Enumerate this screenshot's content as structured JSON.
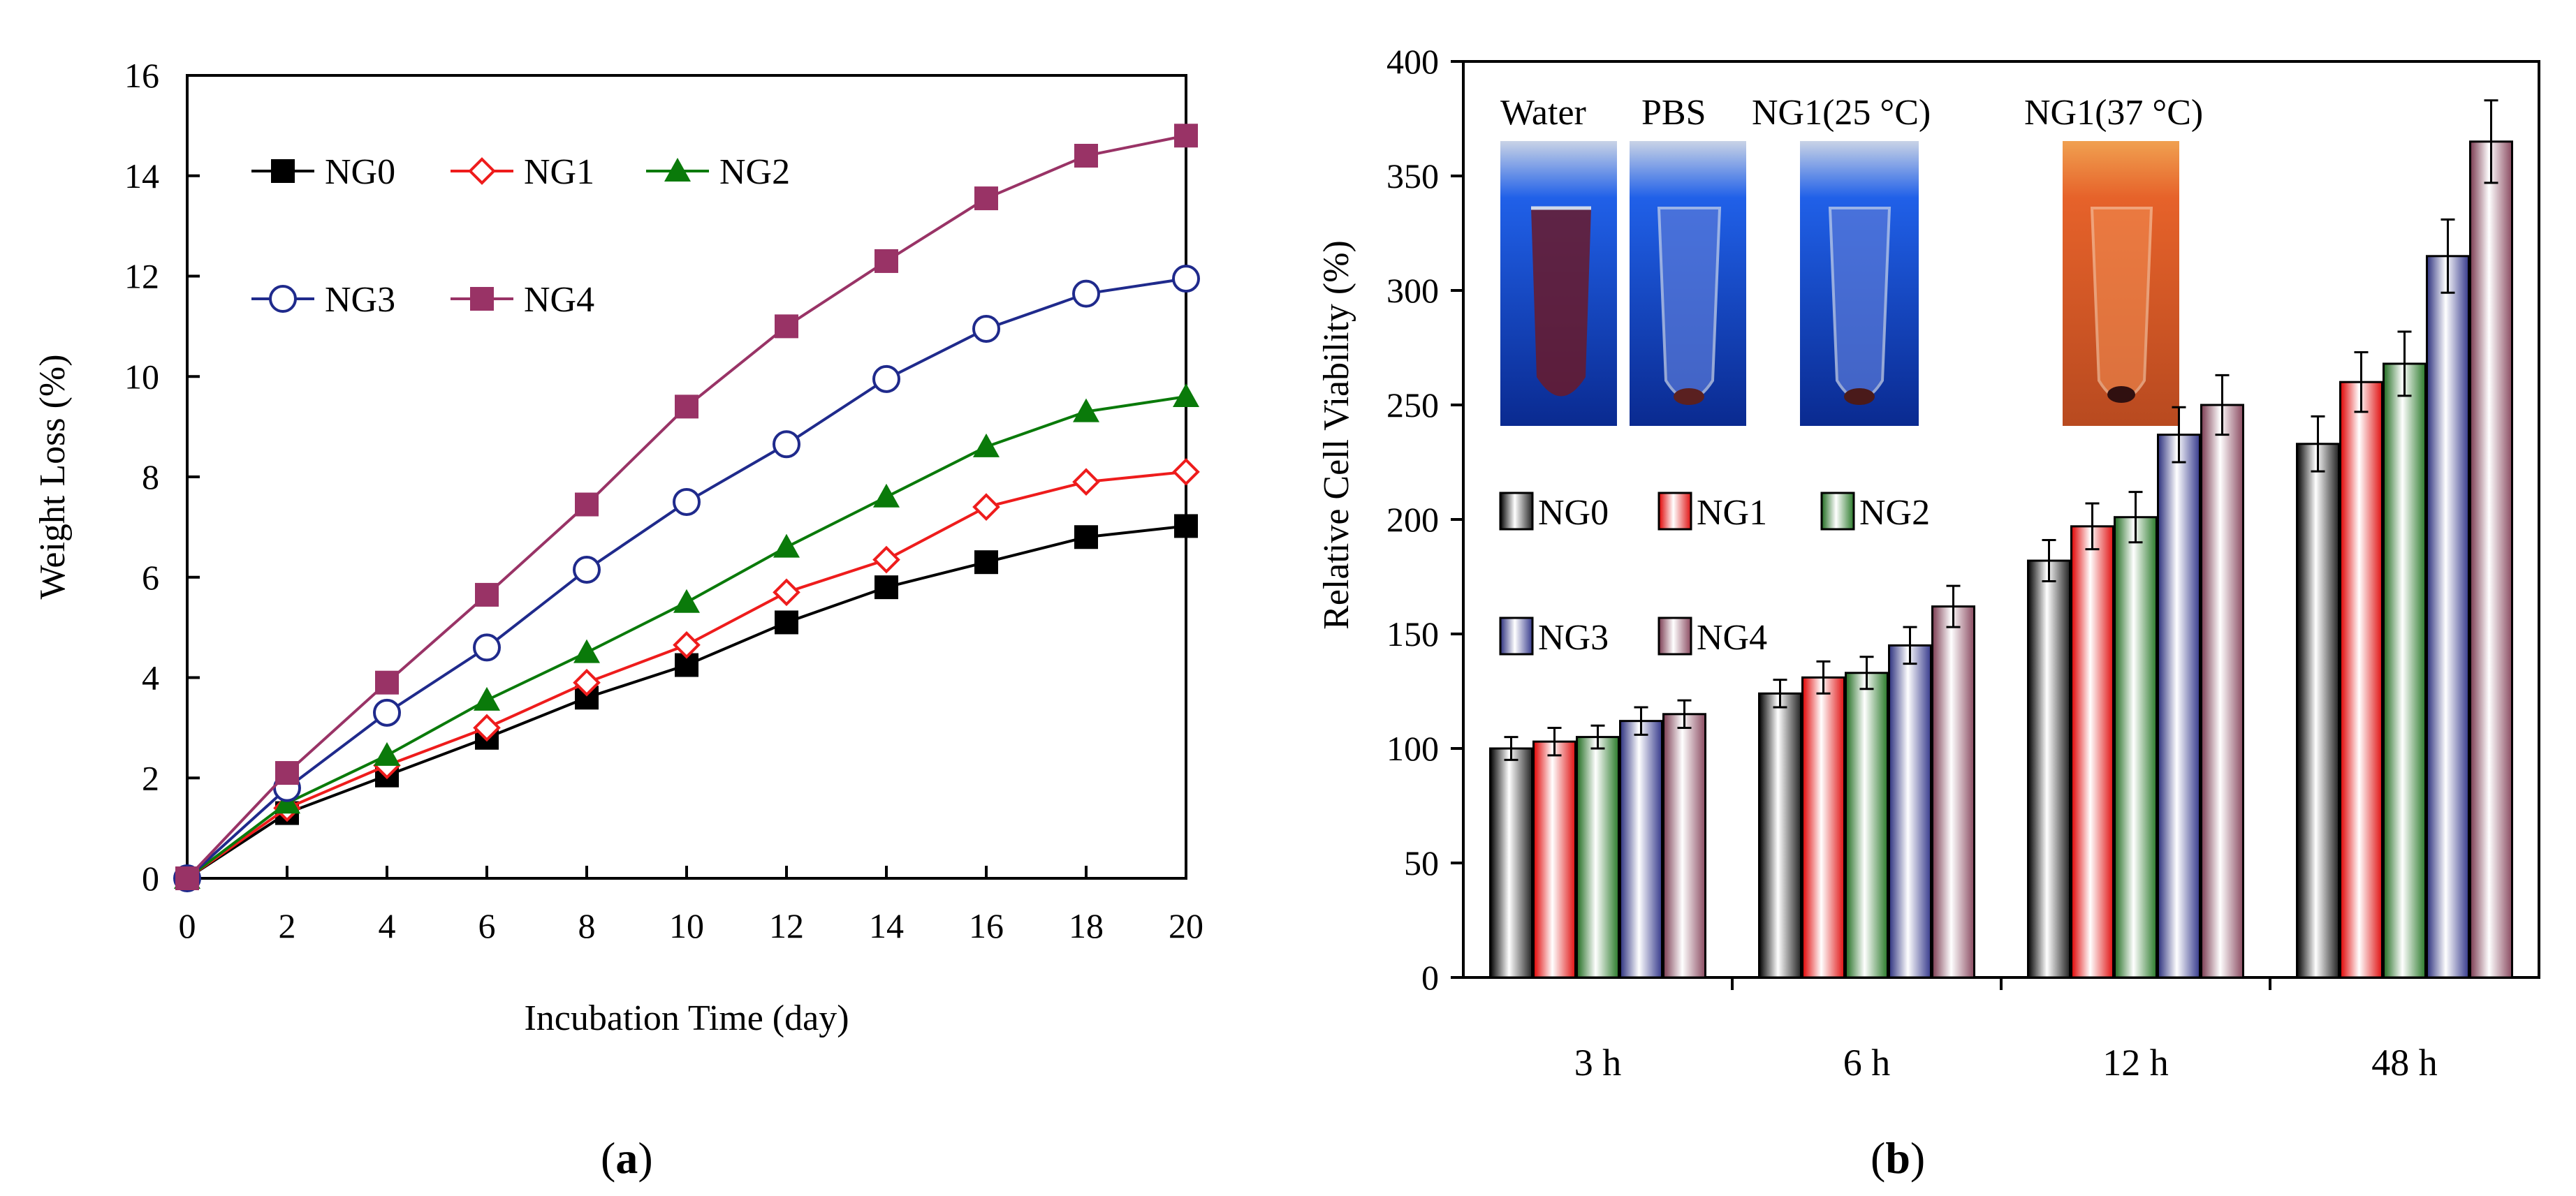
{
  "chart_data": [
    {
      "type": "line",
      "panel_label": "(a)",
      "panel_letter": "a",
      "xlabel": "Incubation Time (day)",
      "ylabel": "Weight  Loss (%)",
      "xlim": [
        0,
        20
      ],
      "ylim": [
        0,
        16
      ],
      "xticks": [
        0,
        2,
        4,
        6,
        8,
        10,
        12,
        14,
        16,
        18,
        20
      ],
      "yticks": [
        0,
        2,
        4,
        6,
        8,
        10,
        12,
        14,
        16
      ],
      "grid": false,
      "legend_position": "top-left",
      "x": [
        0,
        2,
        4,
        6,
        8,
        10,
        12,
        14,
        16,
        18,
        20
      ],
      "series": [
        {
          "name": "NG0",
          "marker": "filled-square",
          "color": "#000000",
          "values": [
            0,
            1.3,
            2.05,
            2.8,
            3.6,
            4.25,
            5.1,
            5.8,
            6.3,
            6.8,
            7.02
          ]
        },
        {
          "name": "NG1",
          "marker": "open-diamond",
          "color": "#ee1c1c",
          "values": [
            0,
            1.4,
            2.25,
            3.0,
            3.9,
            4.65,
            5.7,
            6.35,
            7.4,
            7.9,
            8.1
          ]
        },
        {
          "name": "NG2",
          "marker": "filled-triangle",
          "color": "#0a7a0a",
          "values": [
            0,
            1.5,
            2.45,
            3.55,
            4.5,
            5.5,
            6.6,
            7.6,
            8.6,
            9.3,
            9.6
          ]
        },
        {
          "name": "NG3",
          "marker": "open-circle",
          "color": "#1f2a8c",
          "values": [
            0,
            1.8,
            3.3,
            4.6,
            6.15,
            7.5,
            8.65,
            9.95,
            10.95,
            11.65,
            11.95
          ]
        },
        {
          "name": "NG4",
          "marker": "filled-square",
          "color": "#993366",
          "values": [
            0,
            2.1,
            3.9,
            5.65,
            7.45,
            9.4,
            11.0,
            12.3,
            13.55,
            14.4,
            14.8
          ]
        }
      ]
    },
    {
      "type": "bar",
      "panel_label": "(b)",
      "panel_letter": "b",
      "xlabel": "",
      "ylabel": "Relative Cell Viability (%)",
      "ylim": [
        0,
        400
      ],
      "yticks": [
        0,
        50,
        100,
        150,
        200,
        250,
        300,
        350,
        400
      ],
      "grid": false,
      "legend_position": "middle-left",
      "categories": [
        "3 h",
        "6 h",
        "12 h",
        "48 h"
      ],
      "series": [
        {
          "name": "NG0",
          "color": "#b8b8b8",
          "values": [
            100,
            124,
            182,
            233
          ],
          "errors": [
            5,
            6,
            9,
            12
          ]
        },
        {
          "name": "NG1",
          "color": "#f4a8a8",
          "values": [
            103,
            131,
            197,
            260
          ],
          "errors": [
            6,
            7,
            10,
            13
          ]
        },
        {
          "name": "NG2",
          "color": "#a9cfa9",
          "values": [
            105,
            133,
            201,
            268
          ],
          "errors": [
            5,
            7,
            11,
            14
          ]
        },
        {
          "name": "NG3",
          "color": "#b3b6da",
          "values": [
            112,
            145,
            237,
            315
          ],
          "errors": [
            6,
            8,
            12,
            16
          ]
        },
        {
          "name": "NG4",
          "color": "#e3c3cd",
          "values": [
            115,
            162,
            250,
            365
          ],
          "errors": [
            6,
            9,
            13,
            18
          ]
        }
      ],
      "inset_photo_labels": [
        "Water",
        "PBS",
        "NG1(25 °C)",
        "NG1(37 °C)"
      ]
    }
  ]
}
